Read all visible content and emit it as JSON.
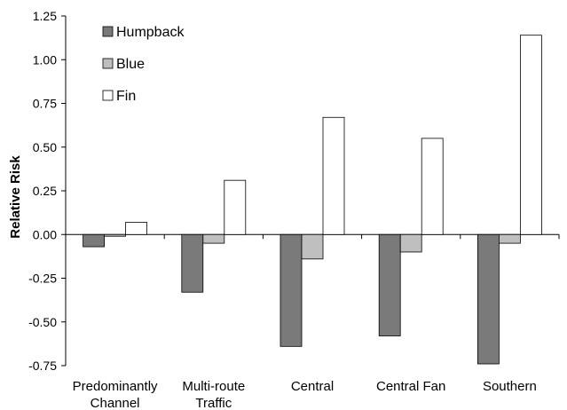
{
  "chart_data": {
    "type": "bar",
    "title": "",
    "xlabel": "",
    "ylabel": "Relative Risk",
    "ylim": [
      -0.75,
      1.25
    ],
    "yticks": [
      1.25,
      1.0,
      0.75,
      0.5,
      0.25,
      0.0,
      -0.25,
      -0.5,
      -0.75
    ],
    "ytick_labels": [
      "1.25",
      "1.00",
      "0.75",
      "0.50",
      "0.25",
      "0.00",
      "-0.25",
      "-0.50",
      "-0.75"
    ],
    "grid": false,
    "legend_position": "top-left",
    "categories": [
      [
        "Predominantly",
        "Channel"
      ],
      [
        "Multi-route",
        "Traffic"
      ],
      [
        "Central"
      ],
      [
        "Central Fan"
      ],
      [
        "Southern"
      ]
    ],
    "series": [
      {
        "name": "Humpback",
        "color": "#7a7a7a",
        "values": [
          -0.07,
          -0.33,
          -0.64,
          -0.58,
          -0.74
        ]
      },
      {
        "name": "Blue",
        "color": "#bfbfbf",
        "values": [
          -0.01,
          -0.05,
          -0.14,
          -0.1,
          -0.05
        ]
      },
      {
        "name": "Fin",
        "color": "#ffffff",
        "values": [
          0.07,
          0.31,
          0.67,
          0.55,
          1.14
        ]
      }
    ]
  }
}
